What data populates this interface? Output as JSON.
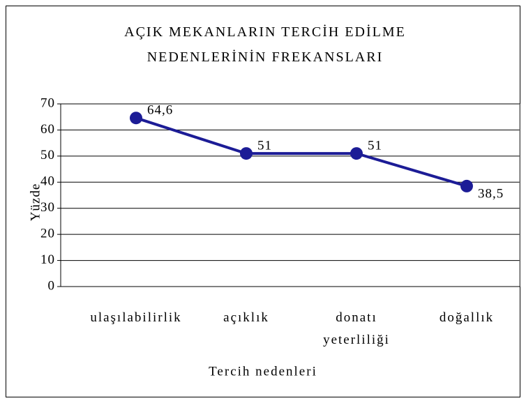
{
  "chart_data": {
    "type": "line",
    "title": "AÇIK MEKANLARIN TERCİH EDİLME NEDENLERİNİN FREKANSLARI",
    "xlabel": "Tercih nedenleri",
    "ylabel": "Yüzde",
    "categories": [
      "ulaşılabilirlik",
      "açıklık",
      "donatı yeterliliği",
      "doğallık"
    ],
    "values": [
      64.6,
      51,
      51,
      38.5
    ],
    "value_labels": [
      "64,6",
      "51",
      "51",
      "38,5"
    ],
    "color": "#1c1c96",
    "ylim": [
      0,
      70
    ],
    "yticks": [
      0,
      10,
      20,
      30,
      40,
      50,
      60,
      70
    ],
    "grid": true
  }
}
